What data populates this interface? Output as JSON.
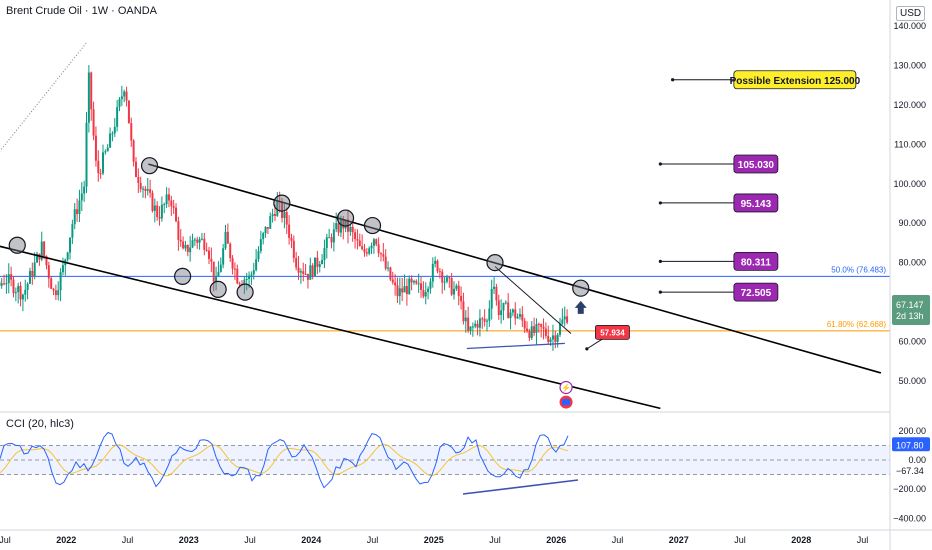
{
  "header": {
    "title": "Brent Crude Oil · 1W · OANDA",
    "currency": "USD"
  },
  "cci": {
    "label": "CCI (20, hlc3)",
    "ticks": [
      "200.00",
      "0.00",
      "−200.00",
      "−400.00"
    ],
    "value_blue": "107.80",
    "value_avg": "−67.34"
  },
  "chart_data": {
    "type": "candlestick",
    "title": "Brent Crude Oil · 1W · OANDA",
    "y_ticks": [
      140,
      130,
      120,
      110,
      100,
      90,
      80,
      70,
      60,
      50
    ],
    "y_tick_labels": [
      "140.000",
      "130.000",
      "120.000",
      "110.000",
      "100.000",
      "90.000",
      "80.000",
      "70.000",
      "60.000",
      "50.000"
    ],
    "x_tick_labels": [
      "Jul",
      "2022",
      "Jul",
      "2023",
      "Jul",
      "2024",
      "Jul",
      "2025",
      "Jul",
      "2026",
      "Jul",
      "2027",
      "Jul",
      "2028",
      "Jul"
    ],
    "x_ticks_time": [
      2021.5,
      2022.0,
      2022.5,
      2023.0,
      2023.5,
      2024.0,
      2024.5,
      2025.0,
      2025.5,
      2026.0,
      2026.5,
      2027.0,
      2027.5,
      2028.0,
      2028.5
    ],
    "price_path": [
      [
        2021.05,
        72
      ],
      [
        2021.2,
        74
      ],
      [
        2021.35,
        70
      ],
      [
        2021.5,
        76
      ],
      [
        2021.65,
        72
      ],
      [
        2021.8,
        84
      ],
      [
        2021.9,
        72
      ],
      [
        2021.97,
        78
      ],
      [
        2022.05,
        90
      ],
      [
        2022.15,
        100
      ],
      [
        2022.18,
        128
      ],
      [
        2022.25,
        102
      ],
      [
        2022.35,
        110
      ],
      [
        2022.45,
        122
      ],
      [
        2022.48,
        126
      ],
      [
        2022.55,
        104
      ],
      [
        2022.65,
        98
      ],
      [
        2022.75,
        92
      ],
      [
        2022.85,
        97
      ],
      [
        2022.95,
        82
      ],
      [
        2023.05,
        86
      ],
      [
        2023.15,
        85
      ],
      [
        2023.22,
        74
      ],
      [
        2023.3,
        86
      ],
      [
        2023.4,
        76
      ],
      [
        2023.5,
        76
      ],
      [
        2023.6,
        86
      ],
      [
        2023.72,
        95
      ],
      [
        2023.8,
        90
      ],
      [
        2023.88,
        80
      ],
      [
        2023.97,
        77
      ],
      [
        2024.05,
        80
      ],
      [
        2024.15,
        86
      ],
      [
        2024.25,
        90
      ],
      [
        2024.32,
        88
      ],
      [
        2024.42,
        82
      ],
      [
        2024.52,
        87
      ],
      [
        2024.6,
        79
      ],
      [
        2024.7,
        72
      ],
      [
        2024.8,
        74
      ],
      [
        2024.92,
        73
      ],
      [
        2025.02,
        80
      ],
      [
        2025.1,
        75
      ],
      [
        2025.2,
        72
      ],
      [
        2025.28,
        62
      ],
      [
        2025.36,
        65
      ],
      [
        2025.44,
        65
      ],
      [
        2025.48,
        77
      ],
      [
        2025.52,
        68
      ],
      [
        2025.6,
        68
      ],
      [
        2025.7,
        66
      ],
      [
        2025.8,
        62
      ],
      [
        2025.88,
        63
      ],
      [
        2025.95,
        61
      ],
      [
        2026.0,
        62
      ],
      [
        2026.05,
        65
      ],
      [
        2026.1,
        67.147
      ]
    ],
    "lines": {
      "channel_upper": [
        [
          2022.67,
          105
        ],
        [
          2028.65,
          52
        ]
      ],
      "channel_lower": [
        [
          2020.95,
          88
        ],
        [
          2026.85,
          43
        ]
      ],
      "horizontal_50_0": 76.5,
      "fib_61_8": 62.668,
      "dotted_rise": [
        [
          2020.95,
          88.5
        ],
        [
          2022.17,
          136
        ]
      ],
      "wedge_top": [
        [
          2025.5,
          79
        ],
        [
          2026.12,
          62
        ]
      ],
      "wedge_bottom": [
        [
          2025.27,
          58.2
        ],
        [
          2026.07,
          59.5
        ]
      ]
    },
    "circles": [
      [
        2021.37,
        86.2
      ],
      [
        2021.6,
        84.4
      ],
      [
        2022.68,
        104.6
      ],
      [
        2022.95,
        76.5
      ],
      [
        2023.24,
        73.2
      ],
      [
        2023.46,
        72.5
      ],
      [
        2023.76,
        95.1
      ],
      [
        2024.28,
        91.3
      ],
      [
        2024.5,
        89.4
      ],
      [
        2025.5,
        80
      ],
      [
        2026.2,
        73.5
      ]
    ],
    "labels": [
      {
        "text": "Possible Extension",
        "value": "125.000",
        "price": 126.4,
        "from_time": 2026.95,
        "to_time": 2027.45,
        "bg": "#ffee2a",
        "fg": "#131722"
      },
      {
        "text": "105.030",
        "price": 105.03,
        "from_time": 2026.85,
        "to_time": 2027.45,
        "bg": "#9c27b0",
        "fg": "#ffffff"
      },
      {
        "text": "95.143",
        "price": 95.143,
        "from_time": 2026.85,
        "to_time": 2027.45,
        "bg": "#9c27b0",
        "fg": "#ffffff"
      },
      {
        "text": "80.311",
        "price": 80.311,
        "from_time": 2026.85,
        "to_time": 2027.45,
        "bg": "#9c27b0",
        "fg": "#ffffff"
      },
      {
        "text": "72.505",
        "price": 72.505,
        "from_time": 2026.85,
        "to_time": 2027.45,
        "bg": "#9c27b0",
        "fg": "#ffffff"
      }
    ],
    "low_label": {
      "text": "57.934",
      "price": 59.3,
      "bg": "#f23645",
      "fg": "#ffffff"
    },
    "fib_labels": {
      "fib_50": "50.0% (76.483)",
      "fib_618": "61.80% (62.668)"
    },
    "last_price": {
      "value": "67.147",
      "countdown": "2d 13h",
      "bg": "#5b9c7e"
    },
    "colors": {
      "up": "#089981",
      "down": "#f23645",
      "channel": "#000000",
      "fib50": "#2962ff",
      "fib618": "#ff9800",
      "purple": "#9c27b0"
    }
  }
}
